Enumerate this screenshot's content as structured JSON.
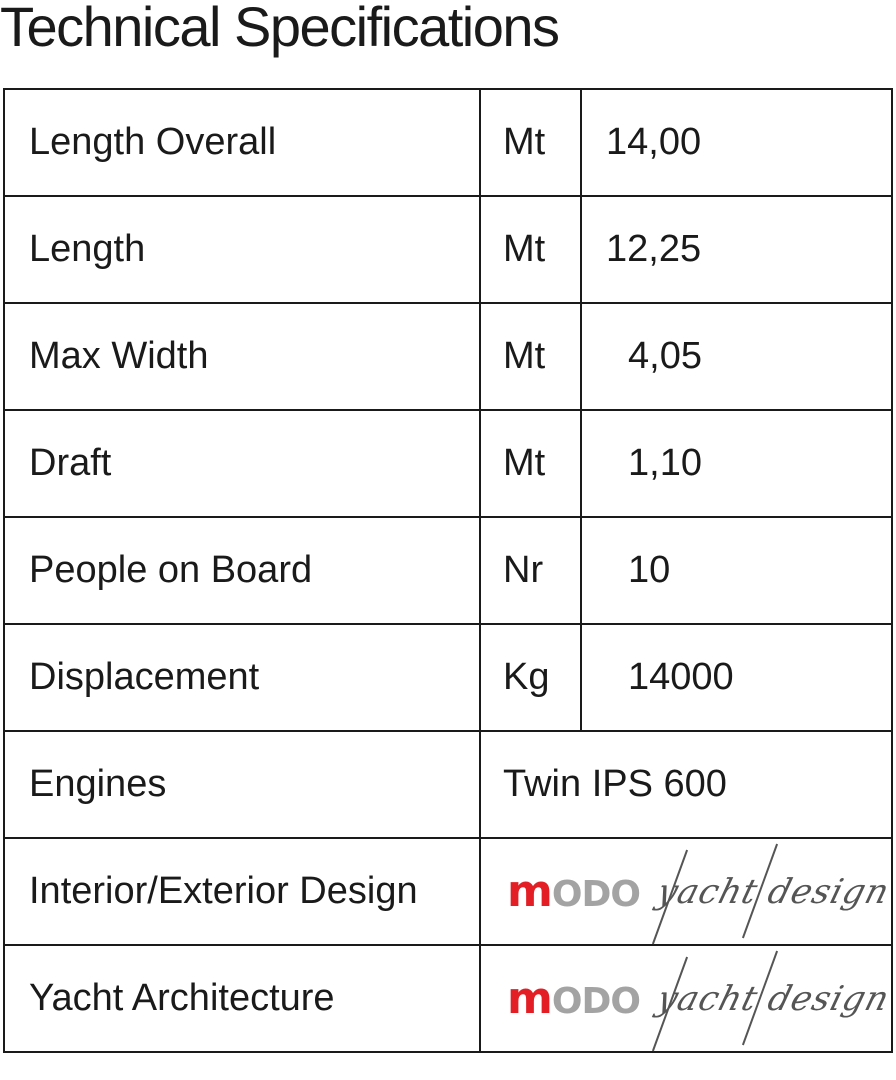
{
  "title": "Technical Specifications",
  "rows": [
    {
      "label": "Length Overall",
      "unit": "Mt",
      "value": "14,00"
    },
    {
      "label": "Length",
      "unit": "Mt",
      "value": "12,25"
    },
    {
      "label": "Max Width",
      "unit": "Mt",
      "value": "4,05"
    },
    {
      "label": "Draft",
      "unit": "Mt",
      "value": "1,10"
    },
    {
      "label": "People on Board",
      "unit": "Nr",
      "value": "10"
    },
    {
      "label": "Displacement",
      "unit": "Kg",
      "value": "14000"
    }
  ],
  "engines": {
    "label": "Engines",
    "value": "Twin IPS 600"
  },
  "design": {
    "label": "Interior/Exterior Design"
  },
  "architecture": {
    "label": "Yacht Architecture"
  },
  "logo": {
    "m": "m",
    "odo": "ODO",
    "script": "yacht design",
    "colors": {
      "red": "#e31e24",
      "gray": "#a3a3a3",
      "script": "#555555"
    }
  }
}
